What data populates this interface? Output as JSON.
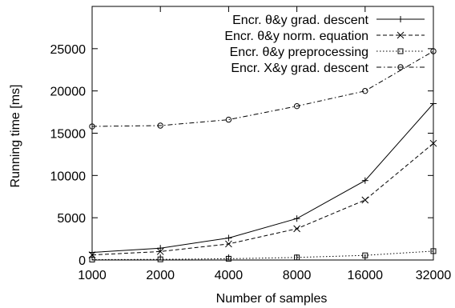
{
  "chart_data": {
    "type": "line",
    "title": "",
    "xlabel": "Number of samples",
    "ylabel": "Running time [ms]",
    "x": [
      1000,
      2000,
      4000,
      8000,
      16000,
      32000
    ],
    "x_scale": "log2",
    "xticks": [
      "1000",
      "2000",
      "4000",
      "8000",
      "16000",
      "32000"
    ],
    "ylim": [
      0,
      30000
    ],
    "yticks": [
      0,
      5000,
      10000,
      15000,
      20000,
      25000
    ],
    "grid": false,
    "legend_position": "top-right",
    "series": [
      {
        "name": "Encr. θ&y grad. descent",
        "values": [
          900,
          1400,
          2600,
          4900,
          9400,
          18500
        ],
        "marker": "plus",
        "dash": "solid",
        "color": "#000000"
      },
      {
        "name": "Encr. θ&y norm. equation",
        "values": [
          600,
          1000,
          1900,
          3700,
          7100,
          13800
        ],
        "marker": "cross",
        "dash": "dashed",
        "color": "#000000"
      },
      {
        "name": "Encr. θ&y preprocessing",
        "values": [
          50,
          80,
          150,
          300,
          550,
          1050
        ],
        "marker": "square",
        "dash": "dotted",
        "color": "#000000"
      },
      {
        "name": "Encr. X&y grad. descent",
        "values": [
          15800,
          15900,
          16600,
          18200,
          20000,
          24700
        ],
        "marker": "circle",
        "dash": "dashdot",
        "color": "#000000"
      }
    ]
  }
}
